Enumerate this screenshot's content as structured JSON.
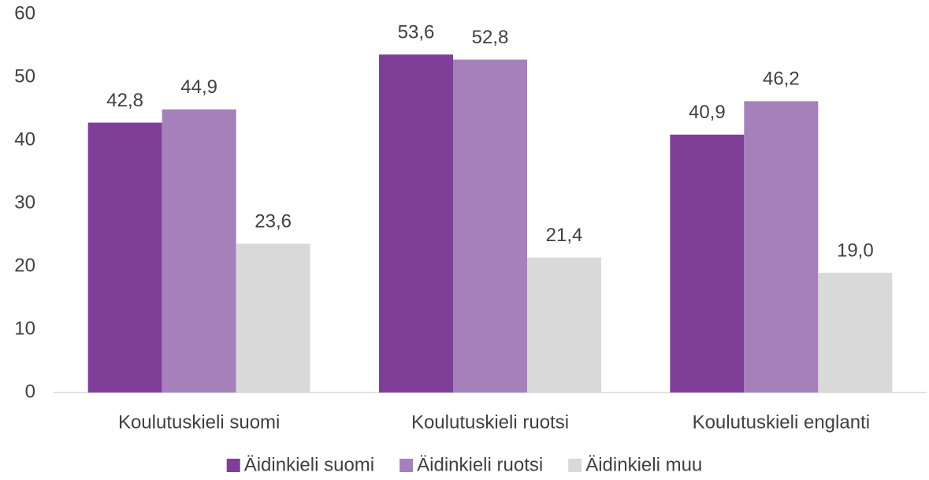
{
  "chart_data": {
    "type": "bar",
    "categories": [
      "Koulutuskieli suomi",
      "Koulutuskieli ruotsi",
      "Koulutuskieli englanti"
    ],
    "series": [
      {
        "name": "Äidinkieli suomi",
        "color": "#7f3f98",
        "values": [
          42.8,
          53.6,
          40.9
        ],
        "value_labels": [
          "42,8",
          "53,6",
          "40,9"
        ]
      },
      {
        "name": "Äidinkieli ruotsi",
        "color": "#a680bb",
        "values": [
          44.9,
          52.8,
          46.2
        ],
        "value_labels": [
          "44,9",
          "52,8",
          "46,2"
        ]
      },
      {
        "name": "Äidinkieli muu",
        "color": "#d9d9d9",
        "values": [
          23.6,
          21.4,
          19.0
        ],
        "value_labels": [
          "23,6",
          "21,4",
          "19,0"
        ]
      }
    ],
    "ylim": [
      0,
      60
    ],
    "yticks": [
      0,
      10,
      20,
      30,
      40,
      50,
      60
    ],
    "grid": false,
    "legend": "bottom"
  }
}
